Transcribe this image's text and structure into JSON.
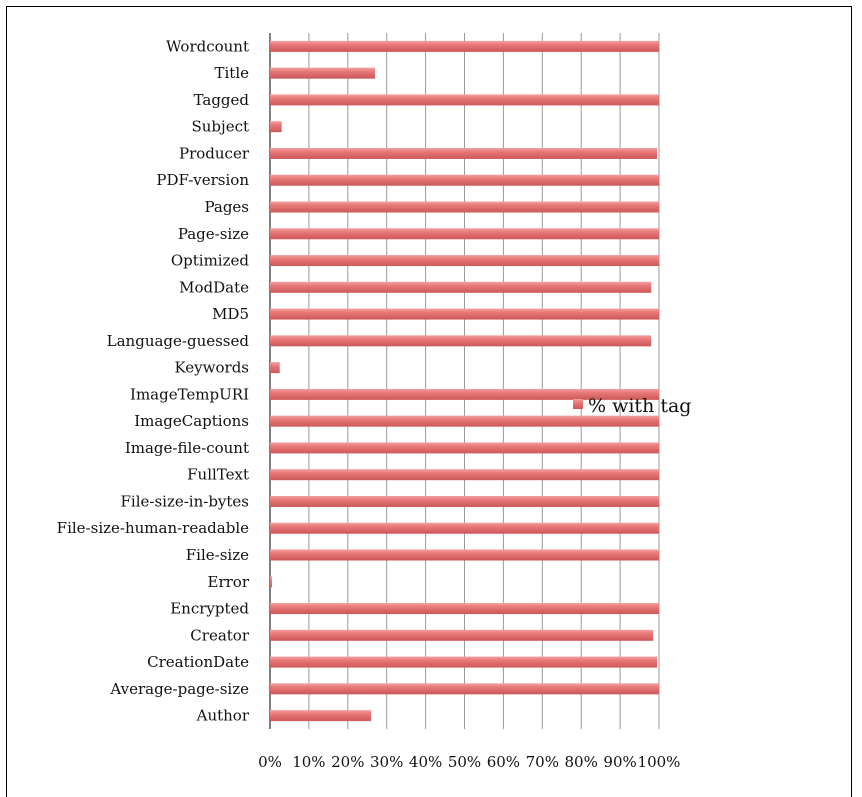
{
  "chart_data": {
    "type": "bar",
    "orientation": "horizontal",
    "categories": [
      "Wordcount",
      "Title",
      "Tagged",
      "Subject",
      "Producer",
      "PDF-version",
      "Pages",
      "Page-size",
      "Optimized",
      "ModDate",
      "MD5",
      "Language-guessed",
      "Keywords",
      "ImageTempURI",
      "ImageCaptions",
      "Image-file-count",
      "FullText",
      "File-size-in-bytes",
      "File-size-human-readable",
      "File-size",
      "Error",
      "Encrypted",
      "Creator",
      "CreationDate",
      "Average-page-size",
      "Author"
    ],
    "series": [
      {
        "name": "% with tag",
        "color": "#e07474",
        "values": [
          100,
          27,
          100,
          3,
          99.5,
          100,
          100,
          100,
          100,
          98,
          100,
          98,
          2.5,
          100,
          100,
          100,
          100,
          100,
          100,
          100,
          0.5,
          100,
          98.5,
          99.5,
          100,
          26
        ]
      }
    ],
    "xlim": [
      0,
      100
    ],
    "x_ticks": [
      "0%",
      "10%",
      "20%",
      "30%",
      "40%",
      "50%",
      "60%",
      "70%",
      "80%",
      "90%",
      "100%"
    ],
    "grid": true,
    "legend_position": "right"
  }
}
